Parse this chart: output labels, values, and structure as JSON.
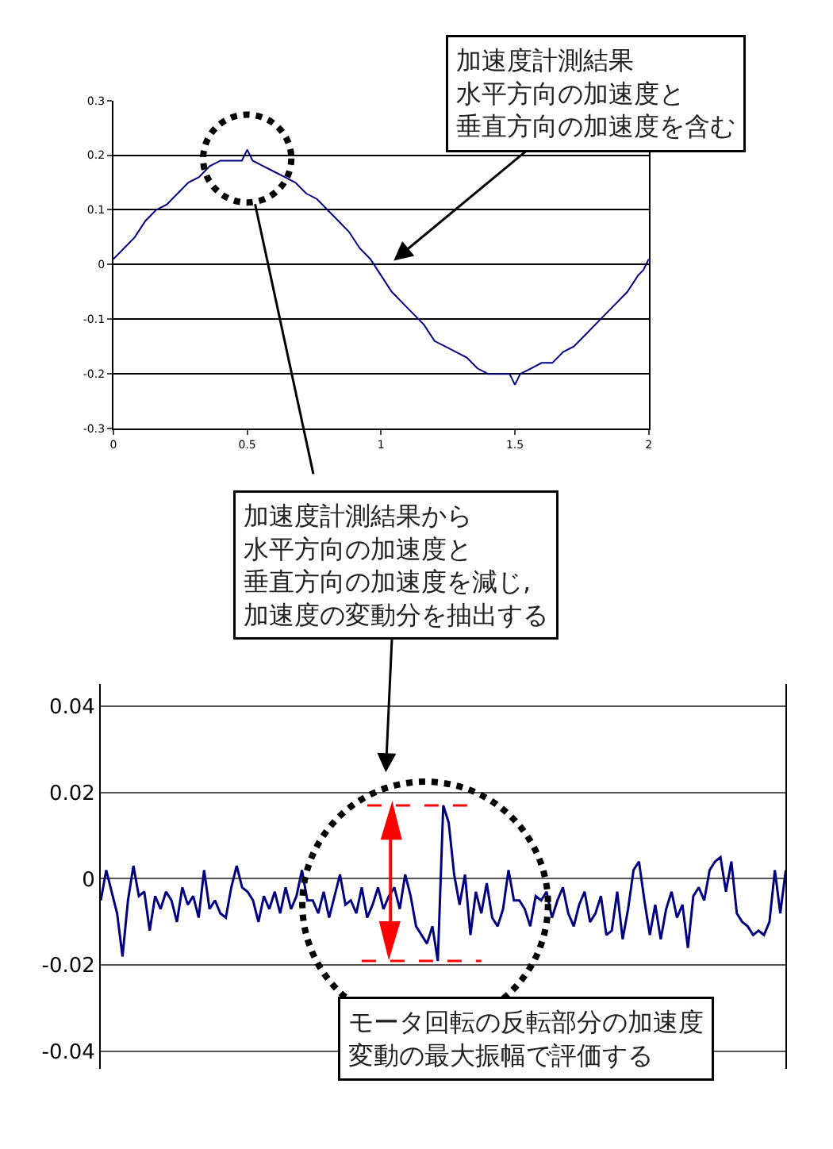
{
  "chart_data": [
    {
      "type": "line",
      "x": [
        0,
        0.04,
        0.08,
        0.12,
        0.16,
        0.2,
        0.24,
        0.28,
        0.32,
        0.36,
        0.4,
        0.44,
        0.48,
        0.5,
        0.52,
        0.56,
        0.6,
        0.64,
        0.68,
        0.72,
        0.76,
        0.8,
        0.84,
        0.88,
        0.92,
        0.96,
        1.0,
        1.04,
        1.08,
        1.12,
        1.16,
        1.2,
        1.24,
        1.28,
        1.32,
        1.36,
        1.4,
        1.44,
        1.48,
        1.5,
        1.52,
        1.56,
        1.6,
        1.64,
        1.68,
        1.72,
        1.76,
        1.8,
        1.84,
        1.88,
        1.92,
        1.96,
        1.98,
        2.0
      ],
      "series": [
        {
          "color": "#000080",
          "values": [
            0.01,
            0.03,
            0.05,
            0.08,
            0.1,
            0.11,
            0.13,
            0.15,
            0.16,
            0.18,
            0.19,
            0.19,
            0.19,
            0.21,
            0.19,
            0.18,
            0.17,
            0.16,
            0.15,
            0.13,
            0.12,
            0.1,
            0.08,
            0.06,
            0.03,
            0.01,
            -0.02,
            -0.05,
            -0.07,
            -0.09,
            -0.11,
            -0.14,
            -0.15,
            -0.16,
            -0.17,
            -0.19,
            -0.2,
            -0.2,
            -0.2,
            -0.22,
            -0.2,
            -0.19,
            -0.18,
            -0.18,
            -0.16,
            -0.15,
            -0.13,
            -0.11,
            -0.09,
            -0.07,
            -0.05,
            -0.02,
            -0.01,
            0.01
          ]
        }
      ],
      "xlim": [
        0,
        2
      ],
      "xticks": [
        0,
        0.5,
        1,
        1.5,
        2
      ],
      "ylim": [
        -0.3,
        0.3
      ],
      "yticks": [
        -0.3,
        -0.2,
        -0.1,
        0,
        0.1,
        0.2,
        0.3
      ],
      "grid": "y",
      "marker": "none",
      "line_style": "solid",
      "annotations": [
        "加速度計測結果水平方向の加速度と垂直方向の加速度を含む",
        "加速度計測結果から水平方向の加速度と垂直方向の加速度を減じ,加速度の変動分を抽出する"
      ]
    },
    {
      "type": "line",
      "categories": [
        null,
        null,
        null,
        null,
        null,
        null,
        null,
        null,
        null,
        null,
        null,
        null,
        null,
        null,
        null,
        null,
        null,
        null,
        null,
        null,
        null,
        null,
        null,
        null,
        null,
        null,
        null,
        null,
        null,
        null,
        null,
        null,
        null,
        null,
        null,
        null,
        null,
        null,
        null,
        null,
        null,
        null,
        null,
        null,
        null,
        null,
        null,
        null,
        null,
        null,
        null,
        null,
        null,
        null,
        null,
        null,
        null,
        null,
        null,
        null,
        null,
        null,
        null,
        null,
        null,
        null,
        null,
        null,
        null,
        null,
        null,
        null,
        null,
        null,
        null,
        null,
        null,
        null,
        null,
        null,
        null,
        null,
        null,
        null,
        null,
        null,
        null,
        null,
        null,
        null,
        null,
        null,
        null,
        null,
        null,
        null,
        null,
        null,
        null,
        null,
        null,
        null,
        null,
        null,
        null,
        null,
        null,
        null,
        null,
        null,
        null,
        null,
        null,
        null,
        null,
        null,
        null,
        null,
        null,
        null,
        null,
        null,
        null,
        null,
        null,
        null,
        null
      ],
      "series": [
        {
          "color": "#000080",
          "values": [
            -0.005,
            0.002,
            -0.003,
            -0.008,
            -0.018,
            -0.005,
            0.003,
            -0.004,
            -0.003,
            -0.012,
            -0.004,
            -0.007,
            -0.003,
            -0.005,
            -0.01,
            -0.002,
            -0.006,
            -0.004,
            -0.009,
            0.002,
            -0.007,
            -0.005,
            -0.008,
            -0.009,
            -0.002,
            0.003,
            -0.002,
            -0.003,
            -0.005,
            -0.01,
            -0.004,
            -0.007,
            -0.003,
            -0.008,
            -0.002,
            -0.007,
            -0.004,
            0.002,
            -0.005,
            -0.005,
            -0.008,
            -0.003,
            -0.009,
            -0.004,
            0.001,
            -0.006,
            -0.005,
            -0.008,
            -0.002,
            -0.009,
            -0.006,
            -0.002,
            -0.007,
            -0.004,
            -0.002,
            -0.007,
            0.001,
            -0.004,
            -0.011,
            -0.013,
            -0.015,
            -0.011,
            -0.019,
            0.017,
            0.013,
            0.001,
            -0.006,
            0.001,
            -0.013,
            -0.003,
            -0.008,
            -0.001,
            -0.009,
            -0.011,
            -0.007,
            0.002,
            -0.005,
            -0.005,
            -0.007,
            -0.011,
            -0.004,
            -0.005,
            -0.003,
            -0.009,
            -0.005,
            -0.002,
            -0.008,
            -0.011,
            -0.006,
            -0.003,
            -0.01,
            -0.008,
            -0.004,
            -0.013,
            -0.012,
            -0.003,
            -0.014,
            -0.007,
            0.002,
            0.004,
            -0.005,
            -0.013,
            -0.006,
            -0.014,
            -0.007,
            -0.003,
            -0.009,
            -0.006,
            -0.016,
            -0.004,
            -0.002,
            -0.005,
            0.002,
            0.004,
            0.005,
            -0.003,
            0.004,
            -0.008,
            -0.01,
            -0.011,
            -0.013,
            -0.012,
            -0.013,
            -0.01,
            0.002,
            -0.008,
            0.002
          ]
        }
      ],
      "ylim": [
        -0.044,
        0.045
      ],
      "yticks": [
        -0.04,
        -0.02,
        0,
        0.02,
        0.04
      ],
      "grid": "y",
      "marker": "none",
      "line_style": "solid",
      "tick_labels": "y",
      "ref_lines": [
        {
          "axis": "y",
          "value": 0.017,
          "color": "#ff0000",
          "line_style": "dashed"
        },
        {
          "axis": "y",
          "value": -0.019,
          "color": "#ff0000",
          "line_style": "dashed"
        }
      ],
      "annotations": [
        "モータ回転の反転部分の加速度変動の最大振幅で評価する"
      ]
    }
  ]
}
